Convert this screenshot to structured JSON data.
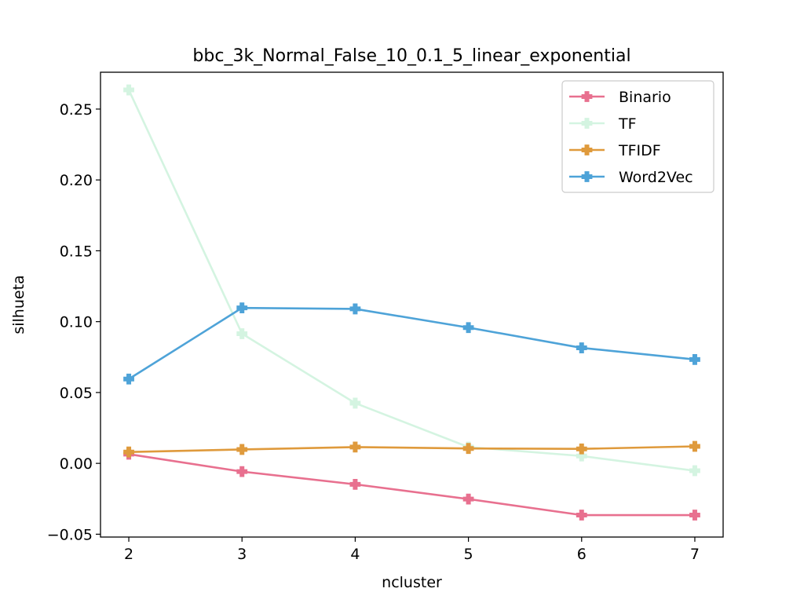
{
  "chart_data": {
    "type": "line",
    "title": "bbc_3k_Normal_False_10_0.1_5_linear_exponential",
    "xlabel": "ncluster",
    "ylabel": "silhueta",
    "x": [
      2,
      3,
      4,
      5,
      6,
      7
    ],
    "xlim": [
      1.75,
      7.25
    ],
    "ylim": [
      -0.052,
      0.276
    ],
    "xticks": [
      2,
      3,
      4,
      5,
      6,
      7
    ],
    "xtick_labels": [
      "2",
      "3",
      "4",
      "5",
      "6",
      "7"
    ],
    "yticks": [
      -0.05,
      0.0,
      0.05,
      0.1,
      0.15,
      0.2,
      0.25
    ],
    "ytick_labels": [
      "−0.05",
      "0.00",
      "0.05",
      "0.10",
      "0.15",
      "0.20",
      "0.25"
    ],
    "grid": false,
    "legend_position": "top-right",
    "series": [
      {
        "name": "Binario",
        "color": "#e8708f",
        "values": [
          0.0065,
          -0.0058,
          -0.0148,
          -0.0252,
          -0.0365,
          -0.0365
        ]
      },
      {
        "name": "TF",
        "color": "#d4f4e1",
        "values": [
          0.2635,
          0.0915,
          0.0425,
          0.0115,
          0.0052,
          -0.0052
        ]
      },
      {
        "name": "TFIDF",
        "color": "#df9a3c",
        "values": [
          0.008,
          0.0098,
          0.0115,
          0.0105,
          0.0102,
          0.012
        ]
      },
      {
        "name": "Word2Vec",
        "color": "#4ea3d8",
        "values": [
          0.0595,
          0.1097,
          0.109,
          0.0958,
          0.0815,
          0.0733
        ]
      }
    ]
  }
}
